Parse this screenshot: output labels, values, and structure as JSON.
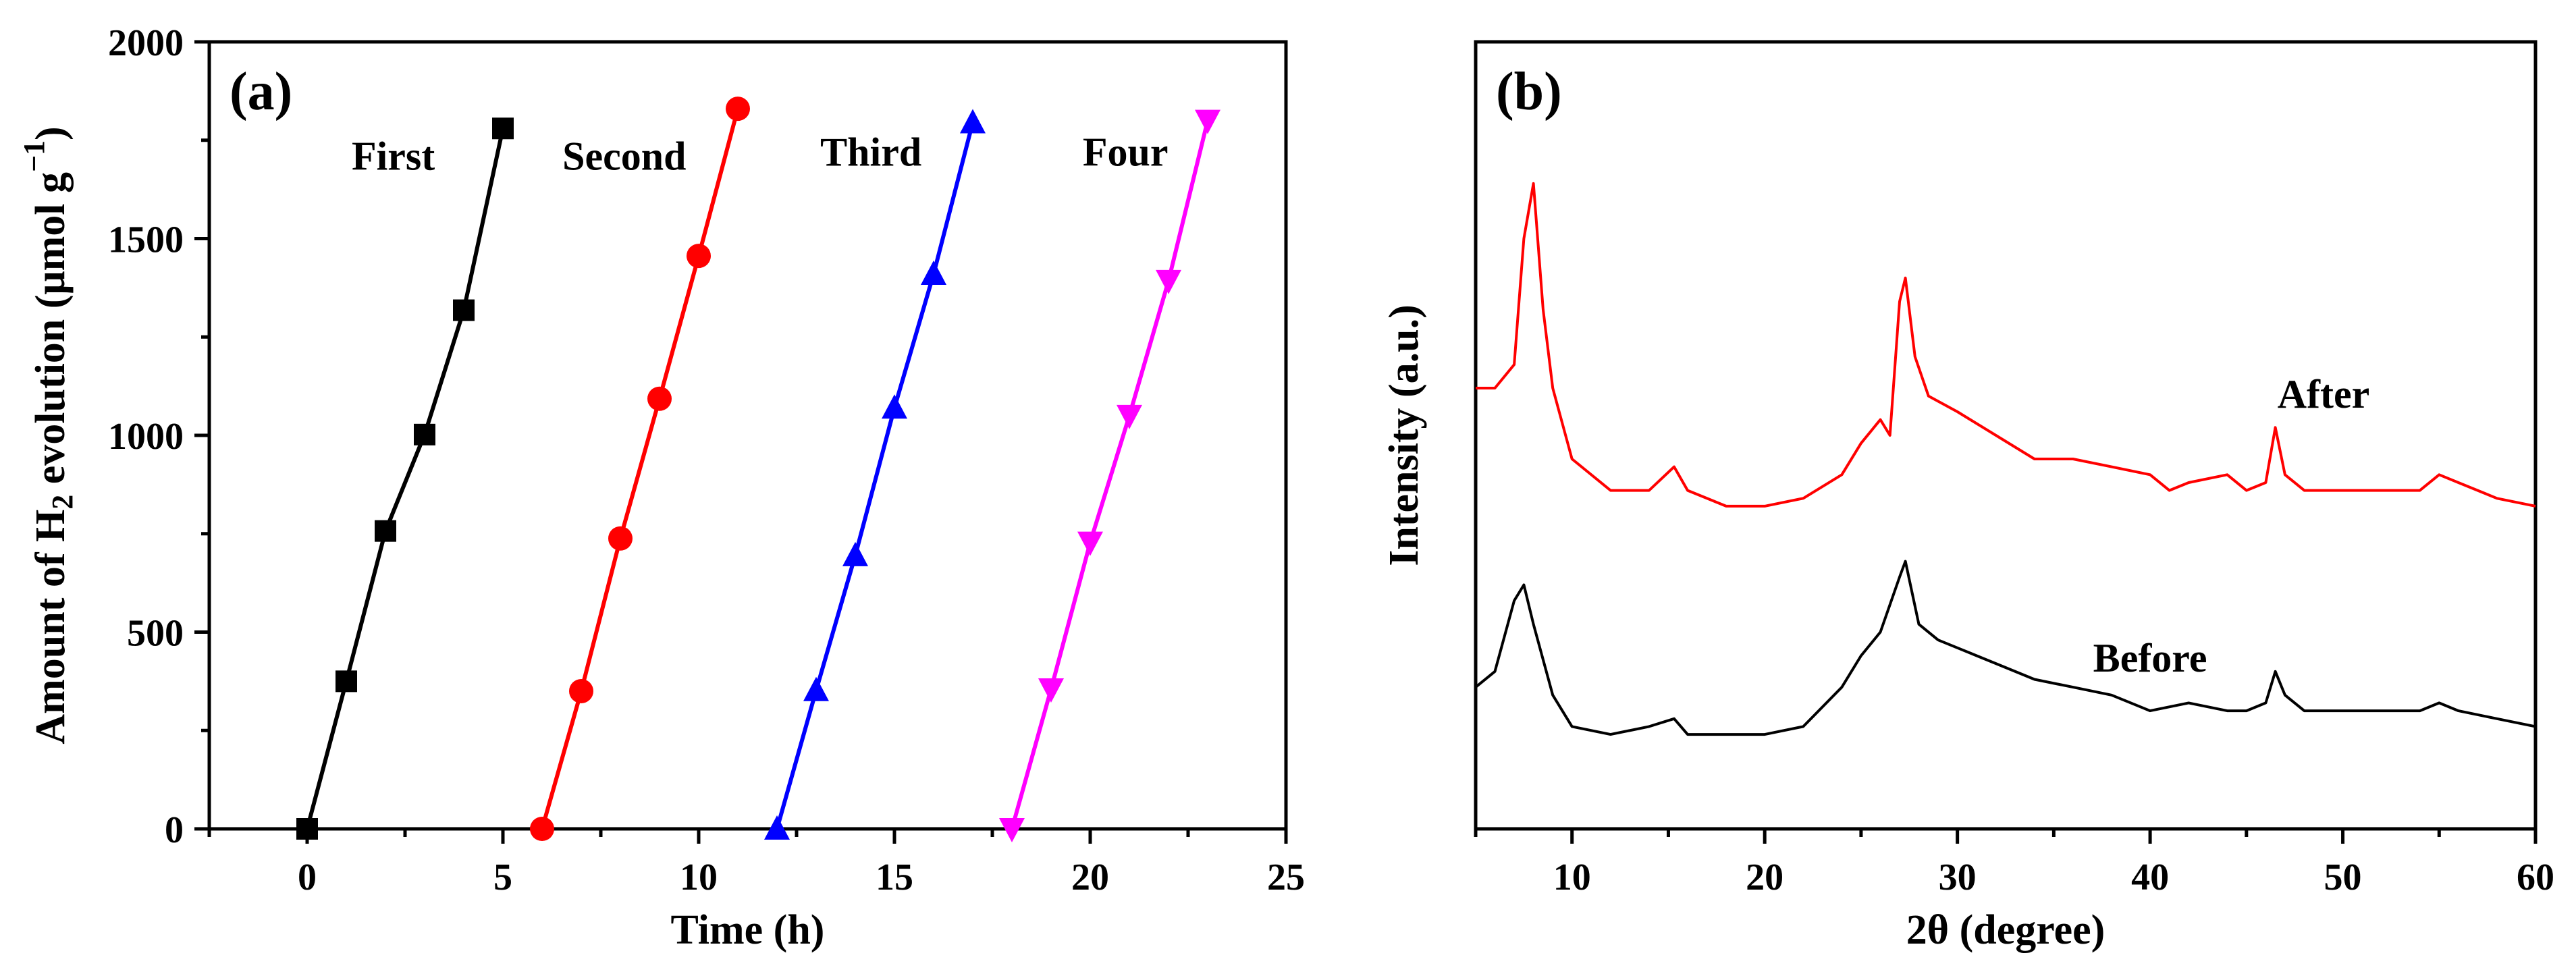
{
  "chart_data": [
    {
      "panel": "(a)",
      "type": "line",
      "xlabel": "Time (h)",
      "ylabel_parts": [
        "Amount of H",
        "2",
        " evolution (μmol g",
        "−1",
        ")"
      ],
      "xlim": [
        -2.5,
        25
      ],
      "ylim": [
        0,
        2000
      ],
      "xticks": [
        0,
        5,
        10,
        15,
        20,
        25
      ],
      "yticks": [
        0,
        500,
        1000,
        1500,
        2000
      ],
      "series": [
        {
          "name": "First",
          "color": "#000000",
          "marker": "square",
          "x": [
            0,
            1,
            2,
            3,
            4,
            5
          ],
          "y": [
            0,
            375,
            757,
            1002,
            1318,
            1780
          ]
        },
        {
          "name": "Second",
          "color": "#ff0000",
          "marker": "circle",
          "x": [
            6,
            7,
            8,
            9,
            10,
            11
          ],
          "y": [
            0,
            350,
            738,
            1093,
            1456,
            1830
          ]
        },
        {
          "name": "Third",
          "color": "#0000ff",
          "marker": "triangle-up",
          "x": [
            12,
            13,
            14,
            15,
            16,
            17
          ],
          "y": [
            0,
            352,
            695,
            1070,
            1410,
            1795
          ]
        },
        {
          "name": "Four",
          "color": "#ff00ff",
          "marker": "triangle-down",
          "x": [
            18,
            19,
            20,
            21,
            22,
            23
          ],
          "y": [
            0,
            355,
            728,
            1050,
            1393,
            1800
          ]
        }
      ],
      "annotations": [
        {
          "text": "First",
          "x": 2.2,
          "y": 1675
        },
        {
          "text": "Second",
          "x": 8.1,
          "y": 1675
        },
        {
          "text": "Third",
          "x": 14.4,
          "y": 1685
        },
        {
          "text": "Four",
          "x": 20.9,
          "y": 1685
        }
      ]
    },
    {
      "panel": "(b)",
      "type": "line",
      "xlabel": "2θ (degree)",
      "ylabel": "Intensity (a.u.)",
      "xlim": [
        5,
        60
      ],
      "ylim": [
        0,
        100
      ],
      "xticks": [
        10,
        20,
        30,
        40,
        50,
        60
      ],
      "yticks": [],
      "series": [
        {
          "name": "After",
          "color": "#ff0000",
          "x": [
            5,
            6,
            7,
            7.5,
            8,
            8.5,
            9,
            10,
            12,
            14,
            15.3,
            16,
            18,
            20,
            22,
            24,
            25,
            26,
            26.5,
            27,
            27.3,
            27.8,
            28.5,
            30,
            32,
            34,
            36,
            38,
            40,
            41,
            42,
            44,
            45,
            46,
            46.5,
            47,
            48,
            50,
            52,
            54,
            55,
            56,
            58,
            60
          ],
          "y": [
            56,
            56,
            59,
            75,
            82,
            66,
            56,
            47,
            43,
            43,
            46,
            43,
            41,
            41,
            42,
            45,
            49,
            52,
            50,
            67,
            70,
            60,
            55,
            53,
            50,
            47,
            47,
            46,
            45,
            43,
            44,
            45,
            43,
            44,
            51,
            45,
            43,
            43,
            43,
            43,
            45,
            44,
            42,
            41
          ]
        },
        {
          "name": "Before",
          "color": "#000000",
          "x": [
            5,
            6,
            7,
            7.5,
            8,
            9,
            10,
            12,
            14,
            15.3,
            16,
            18,
            20,
            22,
            24,
            25,
            26,
            27,
            27.3,
            28,
            29,
            30,
            32,
            34,
            36,
            38,
            40,
            42,
            44,
            45,
            46,
            46.5,
            47,
            48,
            50,
            52,
            54,
            55,
            56,
            58,
            60
          ],
          "y": [
            18,
            20,
            29,
            31,
            26,
            17,
            13,
            12,
            13,
            14,
            12,
            12,
            12,
            13,
            18,
            22,
            25,
            32,
            34,
            26,
            24,
            23,
            21,
            19,
            18,
            17,
            15,
            16,
            15,
            15,
            16,
            20,
            17,
            15,
            15,
            15,
            15,
            16,
            15,
            14,
            13
          ]
        }
      ],
      "annotations": [
        {
          "text": "After",
          "x": 49,
          "y": 53.5
        },
        {
          "text": "Before",
          "x": 40,
          "y": 20
        }
      ]
    }
  ],
  "colors": {
    "first": "#000000",
    "second": "#ff0000",
    "third": "#0000ff",
    "four": "#ff00ff"
  }
}
